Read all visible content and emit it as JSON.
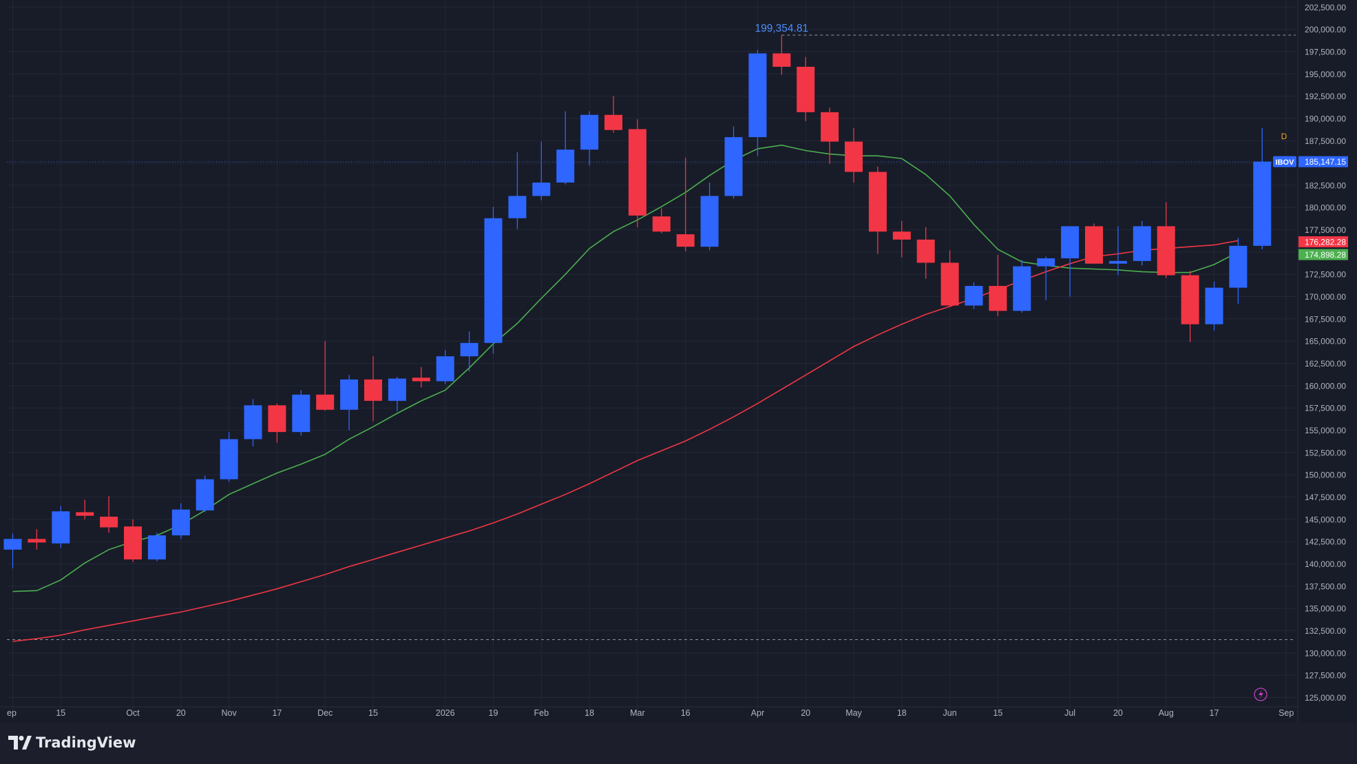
{
  "brand": {
    "name": "TradingView",
    "logo_icon": "tradingview-logo-icon"
  },
  "colors": {
    "background": "#181c28",
    "grid": "#232838",
    "up_candle": "#2e66ff",
    "down_candle": "#f23645",
    "ema_short": "#4caf50",
    "ema_long": "#f23645",
    "text": "#b2b5be",
    "high_label": "#4c8dff",
    "lightning": "#c040c0",
    "d_badge": "#f5a623"
  },
  "chart_data": {
    "type": "candlestick",
    "symbol": "IBOV",
    "interval_badge": "D",
    "last_price_label": "185,147.15",
    "high_annotation": "199,354.81",
    "ylim": [
      124000,
      203000
    ],
    "y_tick_values": [
      125000,
      127500,
      130000,
      132500,
      135000,
      137500,
      140000,
      142500,
      145000,
      147500,
      150000,
      152500,
      155000,
      157500,
      160000,
      162500,
      165000,
      167500,
      170000,
      172500,
      175000,
      177500,
      180000,
      182500,
      185000,
      187500,
      190000,
      192500,
      195000,
      197500,
      200000,
      202500
    ],
    "y_tick_labels": [
      "125,000.00",
      "127,500.00",
      "130,000.00",
      "132,500.00",
      "135,000.00",
      "137,500.00",
      "140,000.00",
      "142,500.00",
      "145,000.00",
      "147,500.00",
      "150,000.00",
      "152,500.00",
      "155,000.00",
      "157,500.00",
      "160,000.00",
      "162,500.00",
      "165,000.00",
      "167,500.00",
      "170,000.00",
      "172,500.00",
      "175,000.00",
      "177,500.00",
      "180,000.00",
      "182,500.00",
      "185,000.00",
      "187,500.00",
      "190,000.00",
      "192,500.00",
      "195,000.00",
      "197,500.00",
      "200,000.00",
      "202,500.00"
    ],
    "x_tick_labels": [
      {
        "label": "ep",
        "index": 0
      },
      {
        "label": "15",
        "index": 2
      },
      {
        "label": "Oct",
        "index": 5
      },
      {
        "label": "20",
        "index": 7
      },
      {
        "label": "Nov",
        "index": 9
      },
      {
        "label": "17",
        "index": 11
      },
      {
        "label": "Dec",
        "index": 13
      },
      {
        "label": "15",
        "index": 15
      },
      {
        "label": "2026",
        "index": 18
      },
      {
        "label": "19",
        "index": 20
      },
      {
        "label": "Feb",
        "index": 22
      },
      {
        "label": "18",
        "index": 24
      },
      {
        "label": "Mar",
        "index": 26
      },
      {
        "label": "16",
        "index": 28
      },
      {
        "label": "Apr",
        "index": 31
      },
      {
        "label": "20",
        "index": 33
      },
      {
        "label": "May",
        "index": 35
      },
      {
        "label": "18",
        "index": 37
      },
      {
        "label": "Jun",
        "index": 39
      },
      {
        "label": "15",
        "index": 41
      },
      {
        "label": "Jul",
        "index": 44
      },
      {
        "label": "20",
        "index": 46
      },
      {
        "label": "Aug",
        "index": 48
      },
      {
        "label": "17",
        "index": 50
      },
      {
        "label": "Sep",
        "index": 53
      }
    ],
    "candles": [
      {
        "o": 141600,
        "h": 143400,
        "l": 139500,
        "c": 142800
      },
      {
        "o": 142800,
        "h": 143900,
        "l": 141600,
        "c": 142400
      },
      {
        "o": 142300,
        "h": 146500,
        "l": 141800,
        "c": 145900
      },
      {
        "o": 145800,
        "h": 147200,
        "l": 145000,
        "c": 145400
      },
      {
        "o": 145300,
        "h": 147600,
        "l": 143500,
        "c": 144100
      },
      {
        "o": 144200,
        "h": 145000,
        "l": 140200,
        "c": 140500
      },
      {
        "o": 140500,
        "h": 143500,
        "l": 140300,
        "c": 143200
      },
      {
        "o": 143200,
        "h": 146800,
        "l": 142800,
        "c": 146100
      },
      {
        "o": 146000,
        "h": 149900,
        "l": 145800,
        "c": 149500
      },
      {
        "o": 149500,
        "h": 154800,
        "l": 149200,
        "c": 154000
      },
      {
        "o": 154000,
        "h": 158500,
        "l": 153200,
        "c": 157800
      },
      {
        "o": 157800,
        "h": 158000,
        "l": 153600,
        "c": 154800
      },
      {
        "o": 154800,
        "h": 159500,
        "l": 154400,
        "c": 159000
      },
      {
        "o": 159000,
        "h": 165000,
        "l": 157200,
        "c": 157300
      },
      {
        "o": 157300,
        "h": 161200,
        "l": 155000,
        "c": 160700
      },
      {
        "o": 160700,
        "h": 163300,
        "l": 156000,
        "c": 158300
      },
      {
        "o": 158300,
        "h": 161000,
        "l": 157100,
        "c": 160800
      },
      {
        "o": 160900,
        "h": 162100,
        "l": 159800,
        "c": 160500
      },
      {
        "o": 160500,
        "h": 164000,
        "l": 160200,
        "c": 163300
      },
      {
        "o": 163300,
        "h": 166100,
        "l": 161600,
        "c": 164800
      },
      {
        "o": 164800,
        "h": 180100,
        "l": 163600,
        "c": 178800
      },
      {
        "o": 178800,
        "h": 186200,
        "l": 177600,
        "c": 181300
      },
      {
        "o": 181300,
        "h": 187400,
        "l": 180800,
        "c": 182800
      },
      {
        "o": 182800,
        "h": 190800,
        "l": 182600,
        "c": 186500
      },
      {
        "o": 186500,
        "h": 190800,
        "l": 184700,
        "c": 190400
      },
      {
        "o": 190400,
        "h": 192500,
        "l": 188400,
        "c": 188700
      },
      {
        "o": 188800,
        "h": 189900,
        "l": 177800,
        "c": 179100
      },
      {
        "o": 179000,
        "h": 179900,
        "l": 177100,
        "c": 177300
      },
      {
        "o": 177000,
        "h": 185600,
        "l": 175100,
        "c": 175600
      },
      {
        "o": 175600,
        "h": 182800,
        "l": 175200,
        "c": 181300
      },
      {
        "o": 181300,
        "h": 189100,
        "l": 181000,
        "c": 187900
      },
      {
        "o": 187900,
        "h": 197700,
        "l": 185800,
        "c": 197300
      },
      {
        "o": 197300,
        "h": 199354.81,
        "l": 194900,
        "c": 195800
      },
      {
        "o": 195800,
        "h": 196900,
        "l": 189700,
        "c": 190700
      },
      {
        "o": 190700,
        "h": 191200,
        "l": 184900,
        "c": 187400
      },
      {
        "o": 187400,
        "h": 188900,
        "l": 182800,
        "c": 184000
      },
      {
        "o": 184000,
        "h": 184600,
        "l": 174800,
        "c": 177300
      },
      {
        "o": 177300,
        "h": 178500,
        "l": 174400,
        "c": 176400
      },
      {
        "o": 176400,
        "h": 177800,
        "l": 172000,
        "c": 173800
      },
      {
        "o": 173800,
        "h": 175200,
        "l": 168800,
        "c": 169000
      },
      {
        "o": 169000,
        "h": 171600,
        "l": 168600,
        "c": 171200
      },
      {
        "o": 171200,
        "h": 174700,
        "l": 167800,
        "c": 168400
      },
      {
        "o": 168400,
        "h": 174100,
        "l": 168200,
        "c": 173400
      },
      {
        "o": 173400,
        "h": 174500,
        "l": 169600,
        "c": 174300
      },
      {
        "o": 174300,
        "h": 177900,
        "l": 170000,
        "c": 177900
      },
      {
        "o": 177900,
        "h": 178200,
        "l": 173900,
        "c": 173700
      },
      {
        "o": 173700,
        "h": 177900,
        "l": 172400,
        "c": 174000
      },
      {
        "o": 174000,
        "h": 178500,
        "l": 173500,
        "c": 177900
      },
      {
        "o": 177900,
        "h": 180600,
        "l": 172100,
        "c": 172400
      },
      {
        "o": 172400,
        "h": 172900,
        "l": 164900,
        "c": 166900
      },
      {
        "o": 166900,
        "h": 171700,
        "l": 166200,
        "c": 171000
      },
      {
        "o": 171000,
        "h": 176600,
        "l": 169200,
        "c": 175700
      },
      {
        "o": 175700,
        "h": 188900,
        "l": 175300,
        "c": 185147.15
      }
    ],
    "series": [
      {
        "value_label": "174,898.28",
        "values": [
          136900,
          137000,
          138200,
          140100,
          141600,
          142500,
          143200,
          144400,
          146000,
          147800,
          149000,
          150200,
          151200,
          152300,
          154000,
          155400,
          156900,
          158300,
          159500,
          162000,
          164700,
          167000,
          169800,
          172500,
          175400,
          177300,
          178600,
          180100,
          181700,
          183600,
          185300,
          186600,
          187000,
          186400,
          186000,
          185800,
          185800,
          185500,
          183700,
          181300,
          178100,
          175300,
          173900,
          173500,
          173200,
          173100,
          173000,
          172800,
          172700,
          172700,
          173600,
          175000
        ]
      },
      {
        "value_label": "176,282.28",
        "values": [
          131300,
          131600,
          132000,
          132600,
          133100,
          133600,
          134100,
          134600,
          135200,
          135800,
          136500,
          137200,
          138000,
          138800,
          139700,
          140500,
          141300,
          142100,
          142900,
          143700,
          144600,
          145600,
          146700,
          147800,
          149000,
          150300,
          151600,
          152700,
          153800,
          155100,
          156500,
          158000,
          159600,
          161200,
          162800,
          164400,
          165700,
          166900,
          168000,
          168900,
          169800,
          170800,
          171800,
          172800,
          173700,
          174500,
          174800,
          175200,
          175400,
          175600,
          175800,
          176282.28
        ]
      }
    ],
    "reference_line": 131500
  }
}
